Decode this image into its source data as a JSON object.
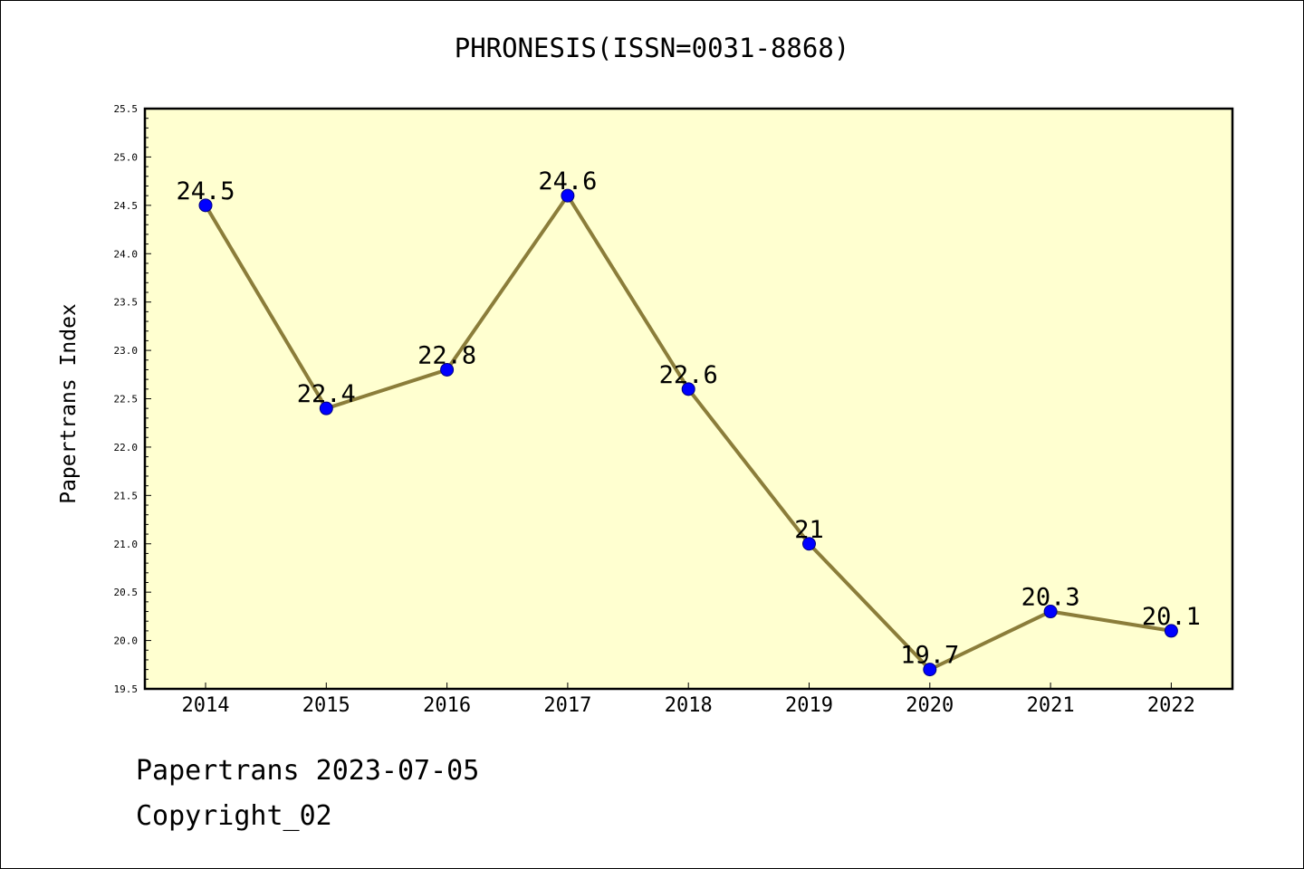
{
  "chart_data": {
    "type": "line",
    "title": "PHRONESIS(ISSN=0031-8868)",
    "xlabel": "",
    "ylabel": "Papertrans Index",
    "categories": [
      "2014",
      "2015",
      "2016",
      "2017",
      "2018",
      "2019",
      "2020",
      "2021",
      "2022"
    ],
    "series": [
      {
        "values": [
          24.5,
          22.4,
          22.8,
          24.6,
          22.6,
          21.0,
          19.7,
          20.3,
          20.1
        ],
        "data_labels": [
          "24.5",
          "22.4",
          "22.8",
          "24.6",
          "22.6",
          "21",
          "19.7",
          "20.3",
          "20.1"
        ]
      }
    ],
    "ylim": [
      19.5,
      25.5
    ],
    "yticks": [
      "19.5",
      "20.0",
      "20.5",
      "21.0",
      "21.5",
      "22.0",
      "22.5",
      "23.0",
      "23.5",
      "24.0",
      "24.5",
      "25.0",
      "25.5"
    ],
    "grid": false,
    "colors": {
      "plot_background": "#ffffd0",
      "line": "#8b7d3a",
      "marker": "#0000ff",
      "marker_edge": "#000080"
    }
  },
  "footer": {
    "date_text": "Papertrans 2023-07-05",
    "copyright_text": "Copyright_02"
  }
}
